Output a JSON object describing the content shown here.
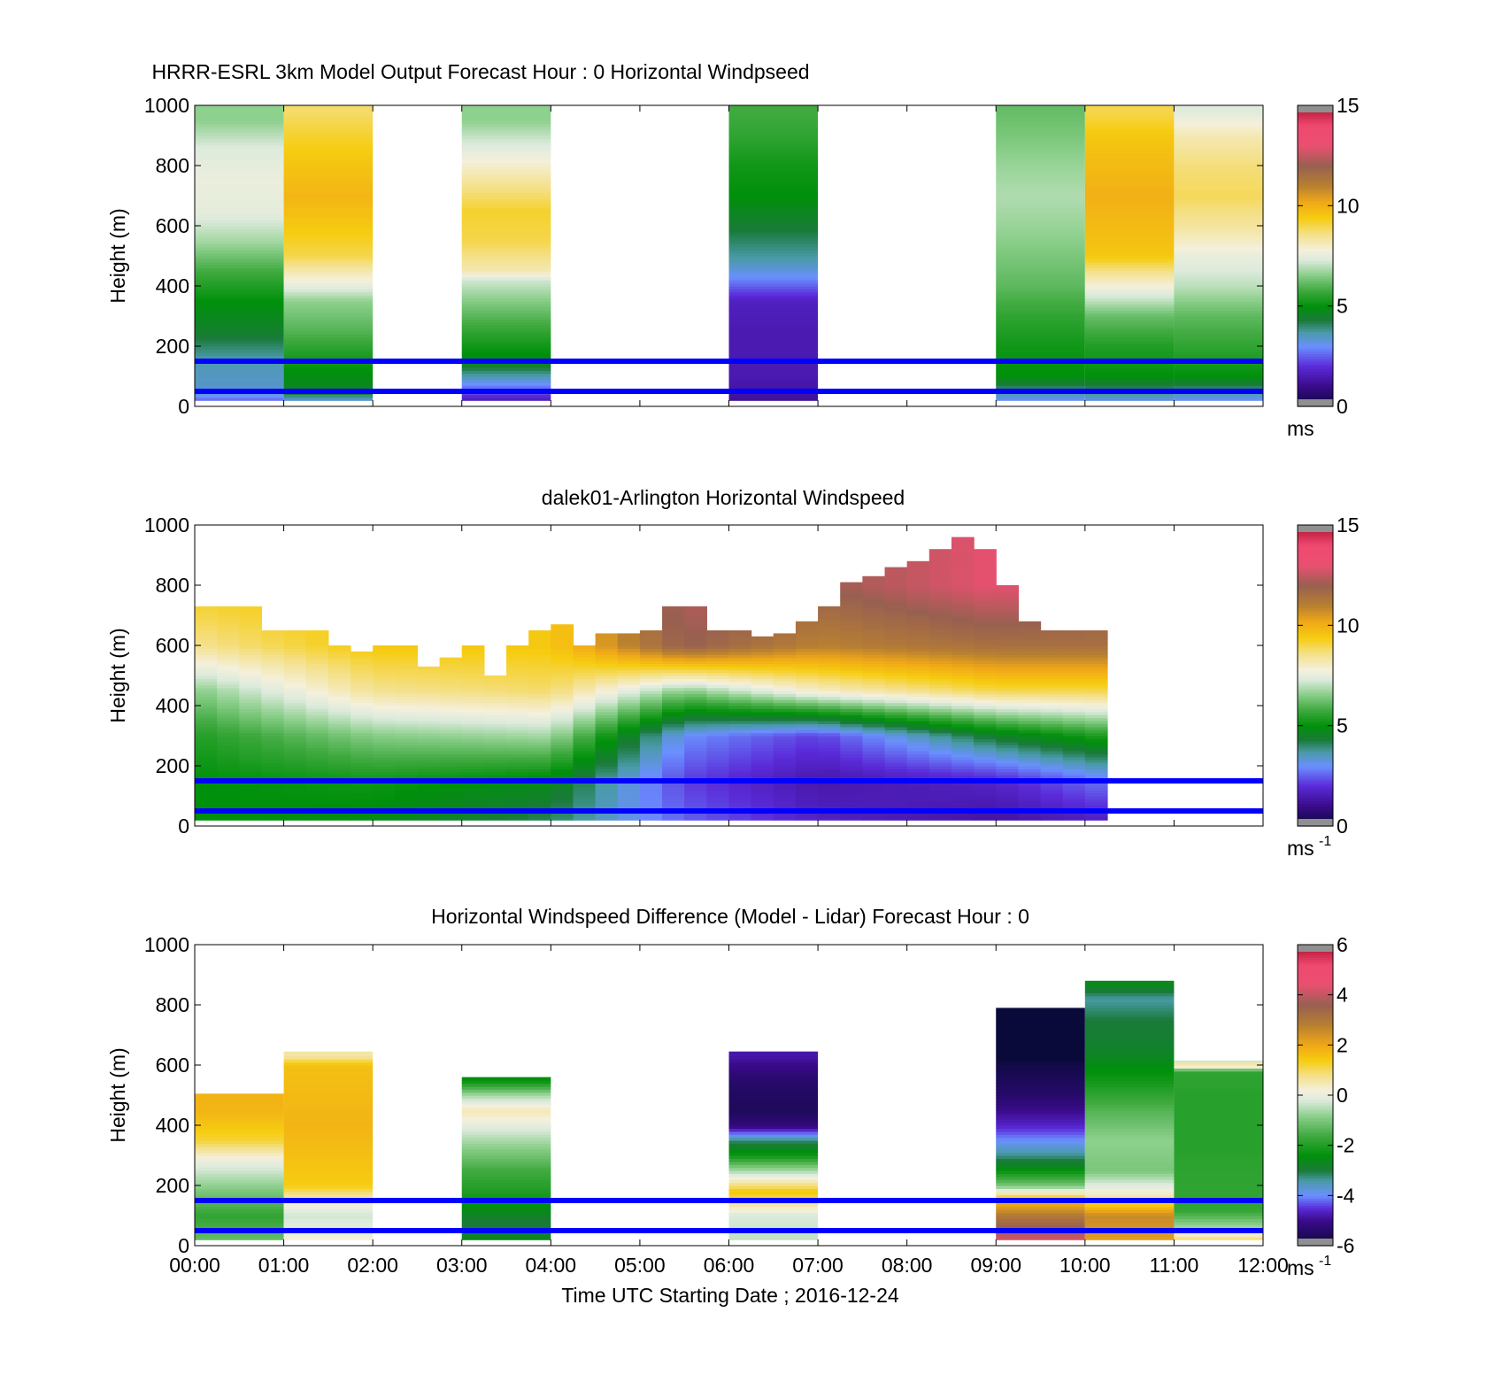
{
  "x_ticks": [
    "00:00",
    "01:00",
    "02:00",
    "03:00",
    "04:00",
    "05:00",
    "06:00",
    "07:00",
    "08:00",
    "09:00",
    "10:00",
    "11:00",
    "12:00"
  ],
  "x_label": "Time UTC  Starting Date ; 2016-12-24",
  "lines_color": "#0000ff",
  "chart_data": [
    {
      "type": "heatmap",
      "title": "HRRR-ESRL 3km Model Output   Forecast Hour : 0 Horizontal Windpseed",
      "ylabel": "Height (m)",
      "ylim": [
        0,
        1000
      ],
      "xlim": [
        "00:00",
        "12:00"
      ],
      "yticks": [
        0,
        200,
        400,
        600,
        800,
        1000
      ],
      "colorbar": {
        "ticks": [
          0,
          5,
          10,
          15
        ],
        "range": [
          0,
          15
        ],
        "unit": "ms",
        "exponent": ""
      },
      "cmap": "speed",
      "reference_lines_m": [
        50,
        150
      ],
      "columns": [
        {
          "start": "00:00",
          "end": "01:00",
          "top": 1000,
          "profile": [
            [
              20,
              2.6
            ],
            [
              50,
              3.4
            ],
            [
              150,
              3.6
            ],
            [
              250,
              4.5
            ],
            [
              350,
              5.0
            ],
            [
              450,
              5.8
            ],
            [
              550,
              6.8
            ],
            [
              650,
              7.5
            ],
            [
              750,
              7.6
            ],
            [
              850,
              7.4
            ],
            [
              950,
              6.6
            ]
          ]
        },
        {
          "start": "01:00",
          "end": "02:00",
          "top": 1000,
          "profile": [
            [
              20,
              3.2
            ],
            [
              50,
              4.6
            ],
            [
              150,
              5.2
            ],
            [
              250,
              6.0
            ],
            [
              350,
              6.6
            ],
            [
              400,
              7.5
            ],
            [
              500,
              9.0
            ],
            [
              600,
              9.5
            ],
            [
              700,
              9.9
            ],
            [
              800,
              9.6
            ],
            [
              900,
              9.2
            ],
            [
              980,
              8.8
            ]
          ]
        },
        {
          "start": "03:00",
          "end": "04:00",
          "top": 1000,
          "profile": [
            [
              20,
              1.6
            ],
            [
              50,
              2.4
            ],
            [
              150,
              4.8
            ],
            [
              250,
              5.6
            ],
            [
              350,
              6.5
            ],
            [
              420,
              7.2
            ],
            [
              450,
              8.2
            ],
            [
              550,
              9.0
            ],
            [
              650,
              9.2
            ],
            [
              750,
              8.4
            ],
            [
              850,
              7.5
            ],
            [
              950,
              6.6
            ]
          ]
        },
        {
          "start": "06:00",
          "end": "07:00",
          "top": 1000,
          "profile": [
            [
              20,
              1.2
            ],
            [
              100,
              1.5
            ],
            [
              250,
              1.5
            ],
            [
              350,
              1.7
            ],
            [
              430,
              3.0
            ],
            [
              480,
              3.6
            ],
            [
              600,
              4.4
            ],
            [
              700,
              5.0
            ],
            [
              800,
              5.2
            ],
            [
              900,
              5.6
            ],
            [
              980,
              5.8
            ]
          ]
        },
        {
          "start": "09:00",
          "end": "10:00",
          "top": 1000,
          "profile": [
            [
              20,
              3.0
            ],
            [
              100,
              5.0
            ],
            [
              200,
              5.2
            ],
            [
              300,
              5.6
            ],
            [
              400,
              6.1
            ],
            [
              500,
              6.4
            ],
            [
              600,
              6.7
            ],
            [
              700,
              6.9
            ],
            [
              800,
              6.7
            ],
            [
              900,
              6.4
            ],
            [
              980,
              6.2
            ]
          ]
        },
        {
          "start": "10:00",
          "end": "11:00",
          "top": 1000,
          "profile": [
            [
              20,
              3.2
            ],
            [
              100,
              5.0
            ],
            [
              200,
              5.4
            ],
            [
              300,
              6.2
            ],
            [
              400,
              7.8
            ],
            [
              450,
              8.6
            ],
            [
              500,
              9.5
            ],
            [
              600,
              9.8
            ],
            [
              700,
              10.0
            ],
            [
              800,
              9.8
            ],
            [
              900,
              9.5
            ],
            [
              980,
              9.0
            ]
          ]
        },
        {
          "start": "11:00",
          "end": "12:00",
          "top": 1000,
          "profile": [
            [
              20,
              3.0
            ],
            [
              100,
              5.0
            ],
            [
              200,
              5.6
            ],
            [
              300,
              6.1
            ],
            [
              400,
              7.0
            ],
            [
              500,
              7.6
            ],
            [
              600,
              8.4
            ],
            [
              700,
              8.9
            ],
            [
              800,
              8.7
            ],
            [
              900,
              8.2
            ],
            [
              980,
              7.4
            ]
          ]
        }
      ]
    },
    {
      "type": "heatmap",
      "title": "dalek01-Arlington  Horizontal Windspeed",
      "ylabel": "Height (m)",
      "ylim": [
        0,
        1000
      ],
      "xlim": [
        "00:00",
        "12:00"
      ],
      "yticks": [
        0,
        200,
        400,
        600,
        800,
        1000
      ],
      "colorbar": {
        "ticks": [
          0,
          5,
          10,
          15
        ],
        "range": [
          0,
          15
        ],
        "unit": "ms",
        "exponent": "-1"
      },
      "cmap": "speed",
      "reference_lines_m": [
        50,
        150
      ],
      "bin_minutes": 15,
      "tops": [
        730,
        730,
        730,
        650,
        650,
        650,
        600,
        580,
        600,
        600,
        530,
        560,
        600,
        500,
        600,
        650,
        670,
        600,
        640,
        640,
        650,
        730,
        730,
        650,
        650,
        630,
        640,
        680,
        730,
        810,
        830,
        860,
        880,
        920,
        960,
        920,
        800,
        680,
        650,
        650,
        650
      ],
      "anchor_heights": [
        0,
        150,
        300,
        450,
        600,
        800,
        1000
      ],
      "anchor_times": [
        "00:00",
        "02:00",
        "04:00",
        "05:30",
        "07:00",
        "09:00",
        "10:30",
        "12:00"
      ],
      "anchor_values": [
        [
          5.0,
          5.0,
          5.4,
          6.5,
          8.5,
          9.5,
          9.5
        ],
        [
          4.8,
          5.2,
          6.5,
          8.5,
          9.5,
          9.5,
          9.5
        ],
        [
          4.0,
          4.8,
          6.8,
          8.8,
          9.5,
          9.5,
          9.5
        ],
        [
          2.6,
          2.2,
          3.0,
          6.5,
          12.0,
          12.5,
          12.5
        ],
        [
          1.8,
          1.4,
          2.2,
          8.0,
          11.0,
          12.0,
          12.0
        ],
        [
          1.2,
          1.8,
          4.5,
          9.0,
          11.5,
          13.0,
          13.0
        ],
        [
          1.6,
          3.0,
          5.6,
          9.0,
          11.5,
          12.0,
          12.0
        ],
        [
          3.2,
          4.6,
          6.2,
          9.0,
          9.6,
          9.8,
          9.8
        ]
      ]
    },
    {
      "type": "heatmap",
      "title": "Horizontal Windspeed Difference (Model - Lidar) Forecast Hour : 0",
      "ylabel": "Height (m)",
      "ylim": [
        0,
        1000
      ],
      "xlim": [
        "00:00",
        "12:00"
      ],
      "yticks": [
        0,
        200,
        400,
        600,
        800,
        1000
      ],
      "colorbar": {
        "ticks": [
          -6,
          -4,
          -2,
          0,
          2,
          4,
          6
        ],
        "range": [
          -6,
          6
        ],
        "unit": "ms",
        "exponent": "-1"
      },
      "cmap": "diff",
      "reference_lines_m": [
        50,
        150
      ],
      "columns": [
        {
          "start": "00:00",
          "end": "01:00",
          "top": 505,
          "profile": [
            [
              20,
              -1.2
            ],
            [
              100,
              -1.8
            ],
            [
              200,
              -0.8
            ],
            [
              280,
              0.0
            ],
            [
              350,
              1.2
            ],
            [
              450,
              1.8
            ],
            [
              500,
              1.8
            ]
          ]
        },
        {
          "start": "01:00",
          "end": "02:00",
          "top": 645,
          "profile": [
            [
              20,
              0.2
            ],
            [
              100,
              -0.3
            ],
            [
              160,
              0.5
            ],
            [
              200,
              1.4
            ],
            [
              300,
              1.6
            ],
            [
              400,
              1.8
            ],
            [
              500,
              1.7
            ],
            [
              600,
              1.6
            ],
            [
              630,
              0.6
            ]
          ]
        },
        {
          "start": "03:00",
          "end": "04:00",
          "top": 560,
          "profile": [
            [
              20,
              -2.6
            ],
            [
              80,
              -3.0
            ],
            [
              150,
              -2.2
            ],
            [
              250,
              -1.6
            ],
            [
              350,
              -0.6
            ],
            [
              450,
              0.5
            ],
            [
              500,
              -0.6
            ],
            [
              550,
              -2.4
            ]
          ]
        },
        {
          "start": "06:00",
          "end": "07:00",
          "top": 645,
          "profile": [
            [
              20,
              -0.4
            ],
            [
              100,
              -0.2
            ],
            [
              180,
              1.5
            ],
            [
              250,
              -0.6
            ],
            [
              300,
              -2.2
            ],
            [
              350,
              -3.2
            ],
            [
              400,
              -5.2
            ],
            [
              450,
              -5.6
            ],
            [
              550,
              -5.4
            ],
            [
              630,
              -4.8
            ]
          ]
        },
        {
          "start": "09:00",
          "end": "10:00",
          "top": 790,
          "profile": [
            [
              20,
              4.2
            ],
            [
              100,
              3.0
            ],
            [
              160,
              1.4
            ],
            [
              200,
              -1.0
            ],
            [
              260,
              -2.6
            ],
            [
              320,
              -3.6
            ],
            [
              400,
              -4.6
            ],
            [
              500,
              -5.4
            ],
            [
              600,
              -5.8
            ],
            [
              640,
              -6.3
            ],
            [
              700,
              -6.3
            ],
            [
              780,
              -6.3
            ]
          ]
        },
        {
          "start": "10:00",
          "end": "11:00",
          "top": 880,
          "profile": [
            [
              20,
              2.2
            ],
            [
              100,
              2.6
            ],
            [
              160,
              0.6
            ],
            [
              250,
              -1.0
            ],
            [
              350,
              -0.8
            ],
            [
              450,
              -1.4
            ],
            [
              550,
              -2.2
            ],
            [
              650,
              -2.8
            ],
            [
              750,
              -3.0
            ],
            [
              820,
              -3.4
            ],
            [
              870,
              -2.6
            ]
          ]
        },
        {
          "start": "11:00",
          "end": "12:00",
          "top": 615,
          "profile": [
            [
              20,
              1.0
            ],
            [
              60,
              -0.6
            ],
            [
              120,
              -1.8
            ],
            [
              200,
              -1.8
            ],
            [
              350,
              -1.9
            ],
            [
              500,
              -1.9
            ],
            [
              580,
              -1.8
            ],
            [
              600,
              1.0
            ],
            [
              615,
              -0.3
            ]
          ]
        }
      ]
    }
  ]
}
